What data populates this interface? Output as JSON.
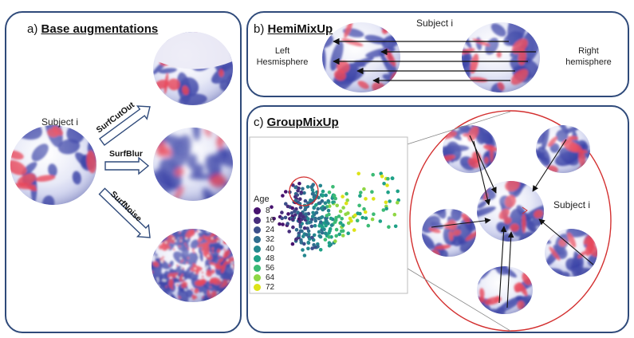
{
  "panels": {
    "a": {
      "prefix": "a) ",
      "title": "Base augmentations",
      "subject": "Subject i",
      "aug_labels": [
        "SurfCutOut",
        "SurfBlur",
        "SurfNoise"
      ]
    },
    "b": {
      "prefix": "b) ",
      "title": "HemiMixUp",
      "subject": "Subject i",
      "left_label_1": "Left",
      "left_label_2": "Hesmisphere",
      "right_label_1": "Right",
      "right_label_2": "hemisphere"
    },
    "c": {
      "prefix": "c) ",
      "title": "GroupMixUp",
      "subject": "Subject i"
    }
  },
  "legend": {
    "title": "Age",
    "entries": [
      {
        "label": "8",
        "color": "#46126e"
      },
      {
        "label": "16",
        "color": "#472e7c"
      },
      {
        "label": "24",
        "color": "#3c4f8a"
      },
      {
        "label": "32",
        "color": "#2f6d8e"
      },
      {
        "label": "40",
        "color": "#24878e"
      },
      {
        "label": "48",
        "color": "#1fa187"
      },
      {
        "label": "56",
        "color": "#3cbb75"
      },
      {
        "label": "64",
        "color": "#8fd744"
      },
      {
        "label": "72",
        "color": "#dde318"
      }
    ]
  },
  "colors": {
    "border": "#2f4a7a",
    "brain_blue": "#3c44a8",
    "brain_red": "#e8455a",
    "ellipse": "#d32f2f"
  }
}
